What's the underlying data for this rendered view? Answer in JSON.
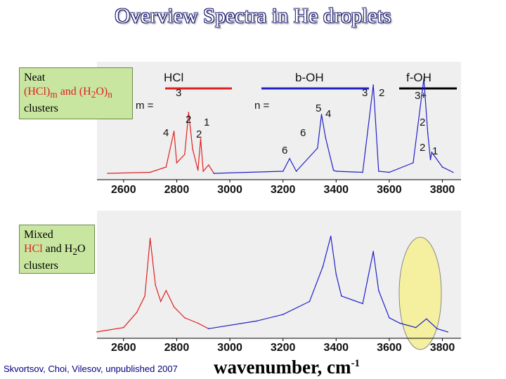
{
  "title": "Overview Spectra in He droplets",
  "colors": {
    "red_series": "#e02020",
    "blue_series": "#2020c8",
    "box_fill": "#c8e6a0",
    "highlight": "#f5f0a0"
  },
  "boxes": {
    "neat": {
      "line1": "Neat",
      "line2_a": "(HCl)",
      "line2_sub_m": "m",
      "line2_b": " and (H",
      "line2_sub_2": "2",
      "line2_c": "O)",
      "line2_sub_n": "n",
      "line3": "clusters"
    },
    "mixed": {
      "line1": "Mixed",
      "line2_a": "HCl",
      "line2_b": " and H",
      "line2_sub_2": "2",
      "line2_c": "O",
      "line3": "clusters"
    }
  },
  "headers": {
    "hcl": "HCl",
    "boh": "b-OH",
    "foh": "f-OH"
  },
  "annotations": {
    "m_eq": "m =",
    "n_eq": "n =",
    "m3": "3",
    "m4": "4",
    "m2a": "2",
    "m1": "1",
    "m2b": "2",
    "n5": "5",
    "n4": "4",
    "n6a": "6",
    "n6b": "6",
    "n3": "3",
    "n2": "2",
    "f3plus": "3+",
    "f2a": "2",
    "f2b": "2",
    "f1": "1"
  },
  "credit": "Skvortsov, Choi, Vilesov, unpublished 2007",
  "xlabel": {
    "text": "wavenumber, cm",
    "sup": "-1"
  },
  "chart_data": [
    {
      "type": "line",
      "xlim": [
        2500,
        3870
      ],
      "xticks": [
        2600,
        2800,
        3000,
        3200,
        3400,
        3600,
        3800
      ],
      "series": [
        {
          "color": "#e02020",
          "x": [
            2540,
            2700,
            2760,
            2790,
            2800,
            2830,
            2845,
            2860,
            2880,
            2890,
            2900,
            2920,
            2940
          ],
          "y": [
            0.02,
            0.03,
            0.08,
            0.42,
            0.12,
            0.2,
            0.6,
            0.25,
            0.05,
            0.35,
            0.04,
            0.1,
            0.02
          ]
        },
        {
          "color": "#2020c8",
          "x": [
            2940,
            3200,
            3225,
            3250,
            3330,
            3345,
            3360,
            3390,
            3400,
            3500,
            3540,
            3560,
            3600,
            3690,
            3730,
            3745,
            3755,
            3760,
            3800,
            3840
          ],
          "y": [
            0.02,
            0.04,
            0.16,
            0.04,
            0.26,
            0.58,
            0.36,
            0.05,
            0.04,
            0.03,
            0.86,
            0.04,
            0.03,
            0.12,
            0.92,
            0.4,
            0.15,
            0.22,
            0.08,
            0.03
          ]
        }
      ]
    },
    {
      "type": "line",
      "xlim": [
        2500,
        3870
      ],
      "xticks": [
        2600,
        2800,
        3000,
        3200,
        3400,
        3600,
        3800
      ],
      "series": [
        {
          "color": "#e02020",
          "x": [
            2500,
            2600,
            2650,
            2680,
            2700,
            2720,
            2740,
            2760,
            2790,
            2830,
            2880,
            2920
          ],
          "y": [
            0.02,
            0.06,
            0.2,
            0.35,
            0.88,
            0.45,
            0.3,
            0.4,
            0.25,
            0.15,
            0.1,
            0.05
          ]
        },
        {
          "color": "#2020c8",
          "x": [
            2920,
            3100,
            3200,
            3300,
            3350,
            3380,
            3400,
            3420,
            3500,
            3540,
            3560,
            3600,
            3640,
            3700,
            3740,
            3780,
            3820
          ],
          "y": [
            0.05,
            0.12,
            0.18,
            0.3,
            0.62,
            0.9,
            0.55,
            0.35,
            0.28,
            0.76,
            0.4,
            0.15,
            0.1,
            0.06,
            0.14,
            0.05,
            0.02
          ]
        }
      ]
    }
  ]
}
